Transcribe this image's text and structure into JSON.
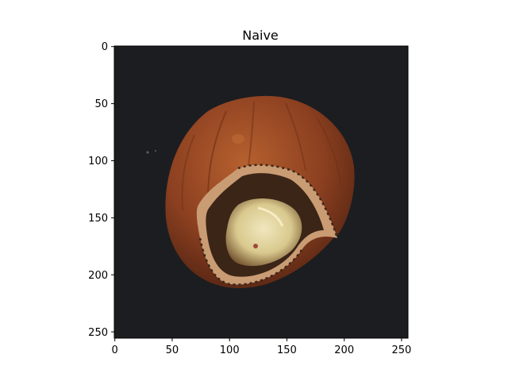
{
  "figure": {
    "title": "Naive",
    "x_ticks": [
      "0",
      "50",
      "100",
      "150",
      "200",
      "250"
    ],
    "y_ticks": [
      "0",
      "50",
      "100",
      "150",
      "200",
      "250"
    ],
    "image_subject": "cracked-hazelnut-photo",
    "colors": {
      "background": "#1c1d20",
      "shell": "#8a3e20",
      "shell_highlight": "#b0582c",
      "crack_edge": "#c79a72",
      "kernel": "#e6ddb0",
      "cavity": "#3a2416"
    }
  }
}
